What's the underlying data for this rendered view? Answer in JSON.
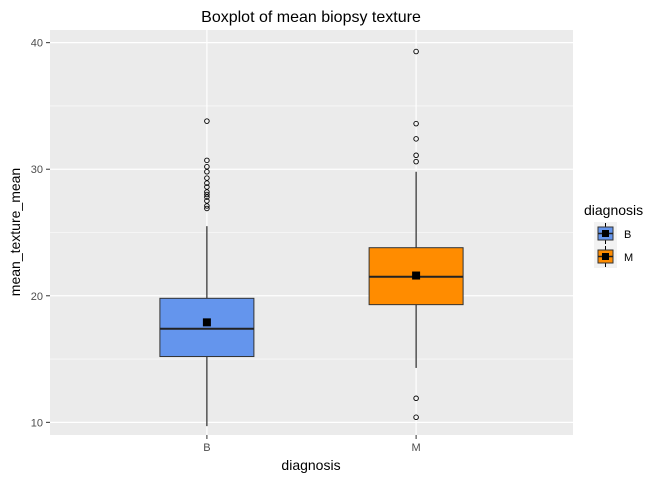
{
  "chart_data": {
    "type": "boxplot",
    "title": "Boxplot of mean biopsy texture",
    "xlabel": "diagnosis",
    "ylabel": "mean_texture_mean",
    "categories": [
      "B",
      "M"
    ],
    "ylim": [
      9,
      41
    ],
    "yticks": [
      10,
      20,
      30,
      40
    ],
    "grid": true,
    "legend": {
      "title": "diagnosis",
      "placement": "right",
      "entries": [
        "B",
        "M"
      ]
    },
    "colors": {
      "B": "#6495ED",
      "M": "#FF8C00",
      "panel": "#EBEBEB",
      "grid": "#FFFFFF",
      "ink": "#000000"
    },
    "series": [
      {
        "category": "B",
        "whisker_low": 9.7,
        "q1": 15.2,
        "median": 17.4,
        "q3": 19.8,
        "whisker_high": 25.5,
        "mean": 17.9,
        "outliers": [
          26.9,
          27.1,
          27.5,
          27.8,
          28.0,
          28.2,
          28.6,
          28.9,
          29.3,
          29.8,
          30.2,
          30.7,
          33.8
        ]
      },
      {
        "category": "M",
        "whisker_low": 14.3,
        "q1": 19.3,
        "median": 21.5,
        "q3": 23.8,
        "whisker_high": 29.8,
        "mean": 21.6,
        "outliers": [
          10.4,
          11.9,
          30.6,
          31.1,
          32.4,
          33.6,
          39.3
        ]
      }
    ]
  }
}
